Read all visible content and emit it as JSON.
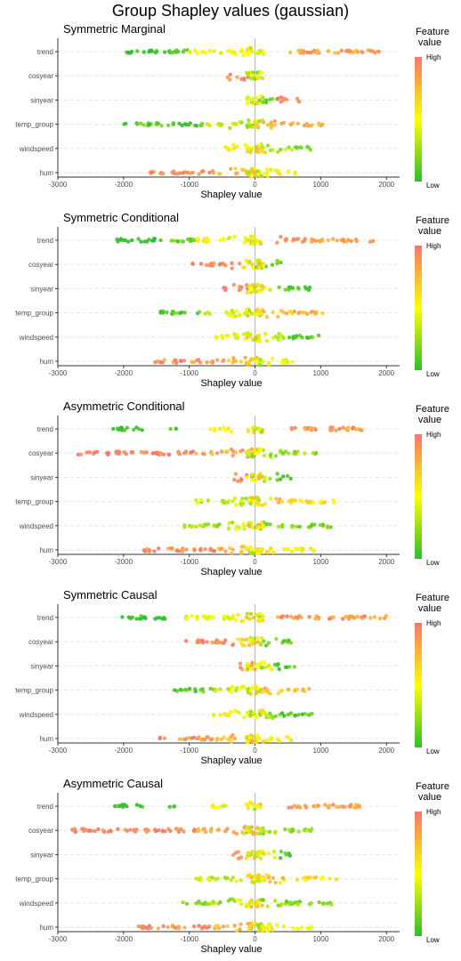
{
  "title": "Group Shapley values (gaussian)",
  "colors": {
    "low": "#2ebd2e",
    "mid": "#ffff00",
    "high": "#f8766d",
    "zero_line": "#bdbdbd",
    "grid": "#e6e6e6"
  },
  "legend": {
    "title_line1": "Feature",
    "title_line2": "value",
    "high": "High",
    "low": "Low"
  },
  "chart_data": [
    {
      "type": "scatter",
      "subtype": "beeswarm",
      "title": "Symmetric Marginal",
      "xlabel": "Shapley value",
      "xlim": [
        -3000,
        2200
      ],
      "xticks": [
        -3000,
        -2000,
        -1000,
        0,
        1000,
        2000
      ],
      "features": [
        "trend",
        "cosyear",
        "sinyear",
        "temp_group",
        "windspeed",
        "hum"
      ],
      "ranges": {
        "trend": [
          [
            -2050,
            -1500,
            0.0
          ],
          [
            -1500,
            -1000,
            0.12
          ],
          [
            -1000,
            0,
            0.48
          ],
          [
            350,
            1900,
            0.85
          ]
        ],
        "cosyear": [
          [
            -420,
            -100,
            0.95
          ],
          [
            -100,
            0,
            0.7
          ],
          [
            0,
            150,
            0.2
          ]
        ],
        "sinyear": [
          [
            -120,
            0,
            0.55
          ],
          [
            0,
            350,
            0.1
          ],
          [
            350,
            700,
            0.95
          ]
        ],
        "temp_group": [
          [
            -2000,
            -800,
            0.08
          ],
          [
            -800,
            0,
            0.35
          ],
          [
            0,
            1100,
            0.8
          ]
        ],
        "windspeed": [
          [
            -450,
            0,
            0.55
          ],
          [
            0,
            600,
            0.3
          ],
          [
            600,
            920,
            0.15
          ]
        ],
        "hum": [
          [
            -1650,
            -600,
            0.9
          ],
          [
            -600,
            0,
            0.75
          ],
          [
            0,
            650,
            0.5
          ]
        ]
      }
    },
    {
      "type": "scatter",
      "subtype": "beeswarm",
      "title": "Symmetric Conditional",
      "xlabel": "Shapley value",
      "xlim": [
        -3000,
        2200
      ],
      "xticks": [
        -3000,
        -2000,
        -1000,
        0,
        1000,
        2000
      ],
      "features": [
        "trend",
        "cosyear",
        "sinyear",
        "temp_group",
        "windspeed",
        "hum"
      ],
      "ranges": {
        "trend": [
          [
            -2100,
            -1400,
            0.0
          ],
          [
            -1400,
            -900,
            0.15
          ],
          [
            -900,
            0,
            0.5
          ],
          [
            300,
            1800,
            0.85
          ]
        ],
        "cosyear": [
          [
            -950,
            -200,
            0.95
          ],
          [
            -200,
            0,
            0.65
          ],
          [
            0,
            450,
            0.15
          ]
        ],
        "sinyear": [
          [
            -500,
            -100,
            0.95
          ],
          [
            -100,
            300,
            0.45
          ],
          [
            300,
            850,
            0.05
          ]
        ],
        "temp_group": [
          [
            -1450,
            -800,
            0.08
          ],
          [
            -800,
            0,
            0.4
          ],
          [
            0,
            1050,
            0.75
          ]
        ],
        "windspeed": [
          [
            -650,
            0,
            0.5
          ],
          [
            0,
            500,
            0.3
          ],
          [
            500,
            970,
            0.1
          ]
        ],
        "hum": [
          [
            -1550,
            -600,
            0.9
          ],
          [
            -600,
            0,
            0.75
          ],
          [
            0,
            600,
            0.5
          ]
        ]
      }
    },
    {
      "type": "scatter",
      "subtype": "beeswarm",
      "title": "Asymmetric Conditional",
      "xlabel": "Shapley value",
      "xlim": [
        -3000,
        2200
      ],
      "xticks": [
        -3000,
        -2000,
        -1000,
        0,
        1000,
        2000
      ],
      "features": [
        "trend",
        "cosyear",
        "sinyear",
        "temp_group",
        "windspeed",
        "hum"
      ],
      "ranges": {
        "trend": [
          [
            -2200,
            -1700,
            0.0
          ],
          [
            -1300,
            -1200,
            0.15
          ],
          [
            -700,
            -350,
            0.5
          ],
          [
            450,
            1650,
            0.85
          ]
        ],
        "cosyear": [
          [
            -2750,
            -900,
            0.95
          ],
          [
            -900,
            0,
            0.8
          ],
          [
            0,
            950,
            0.25
          ]
        ],
        "sinyear": [
          [
            -350,
            0,
            0.9
          ],
          [
            0,
            300,
            0.35
          ],
          [
            300,
            550,
            0.05
          ]
        ],
        "temp_group": [
          [
            -900,
            0,
            0.35
          ],
          [
            0,
            700,
            0.7
          ],
          [
            700,
            1250,
            0.6
          ]
        ],
        "windspeed": [
          [
            -1100,
            -300,
            0.25
          ],
          [
            -300,
            0,
            0.45
          ],
          [
            0,
            1200,
            0.2
          ]
        ],
        "hum": [
          [
            -1800,
            -600,
            0.9
          ],
          [
            -600,
            0,
            0.75
          ],
          [
            0,
            900,
            0.55
          ]
        ]
      }
    },
    {
      "type": "scatter",
      "subtype": "beeswarm",
      "title": "Symmetric Causal",
      "xlabel": "Shapley value",
      "xlim": [
        -3000,
        2200
      ],
      "xticks": [
        -3000,
        -2000,
        -1000,
        0,
        1000,
        2000
      ],
      "features": [
        "trend",
        "cosyear",
        "sinyear",
        "temp_group",
        "windspeed",
        "hum"
      ],
      "ranges": {
        "trend": [
          [
            -2050,
            -1350,
            0.0
          ],
          [
            -1100,
            0,
            0.45
          ],
          [
            300,
            2000,
            0.88
          ]
        ],
        "cosyear": [
          [
            -1050,
            -300,
            0.95
          ],
          [
            -300,
            0,
            0.7
          ],
          [
            0,
            550,
            0.15
          ]
        ],
        "sinyear": [
          [
            -250,
            0,
            0.9
          ],
          [
            0,
            300,
            0.45
          ],
          [
            300,
            600,
            0.05
          ]
        ],
        "temp_group": [
          [
            -1250,
            -600,
            0.1
          ],
          [
            -600,
            0,
            0.4
          ],
          [
            0,
            850,
            0.75
          ]
        ],
        "windspeed": [
          [
            -650,
            0,
            0.5
          ],
          [
            0,
            400,
            0.25
          ],
          [
            400,
            900,
            0.1
          ]
        ],
        "hum": [
          [
            -1450,
            -600,
            0.9
          ],
          [
            -600,
            0,
            0.75
          ],
          [
            0,
            550,
            0.5
          ]
        ]
      }
    },
    {
      "type": "scatter",
      "subtype": "beeswarm",
      "title": "Asymmetric Causal",
      "xlabel": "Shapley value",
      "xlim": [
        -3000,
        2200
      ],
      "xticks": [
        -3000,
        -2000,
        -1000,
        0,
        1000,
        2000
      ],
      "features": [
        "trend",
        "cosyear",
        "sinyear",
        "temp_group",
        "windspeed",
        "hum"
      ],
      "ranges": {
        "trend": [
          [
            -2150,
            -1700,
            0.0
          ],
          [
            -1300,
            -1200,
            0.15
          ],
          [
            -700,
            -400,
            0.5
          ],
          [
            450,
            1650,
            0.85
          ]
        ],
        "cosyear": [
          [
            -2800,
            -900,
            0.95
          ],
          [
            -900,
            0,
            0.8
          ],
          [
            0,
            900,
            0.25
          ]
        ],
        "sinyear": [
          [
            -350,
            0,
            0.9
          ],
          [
            0,
            300,
            0.35
          ],
          [
            300,
            550,
            0.05
          ]
        ],
        "temp_group": [
          [
            -900,
            0,
            0.35
          ],
          [
            0,
            750,
            0.7
          ],
          [
            750,
            1250,
            0.6
          ]
        ],
        "windspeed": [
          [
            -1100,
            -300,
            0.25
          ],
          [
            -300,
            0,
            0.45
          ],
          [
            0,
            1200,
            0.2
          ]
        ],
        "hum": [
          [
            -1800,
            -600,
            0.9
          ],
          [
            -600,
            0,
            0.75
          ],
          [
            0,
            900,
            0.55
          ]
        ]
      }
    }
  ]
}
